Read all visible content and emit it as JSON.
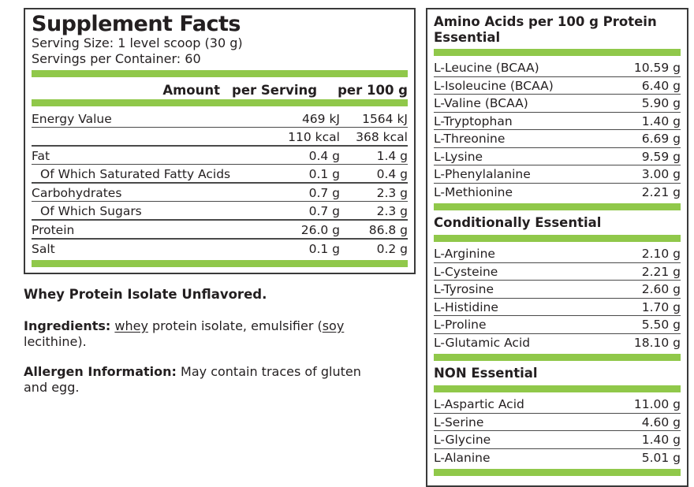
{
  "colors": {
    "accent_green": "#90C84A",
    "text": "#231F20",
    "border": "#3A3A3A"
  },
  "supplement_facts": {
    "title": "Supplement Facts",
    "serving_size": "Serving Size: 1 level scoop (30 g)",
    "servings_per_container": "Servings per Container: 60",
    "table": {
      "headers": {
        "amount": "Amount",
        "per_serving": "per Serving",
        "per_100g": "per 100 g"
      },
      "rows": [
        {
          "label": "Energy Value",
          "per_serving": "469 kJ",
          "per_100g": "1564 kJ",
          "sep": "thin"
        },
        {
          "label": "",
          "per_serving": "110 kcal",
          "per_100g": "368 kcal",
          "sep": "thick"
        },
        {
          "label": "Fat",
          "per_serving": "0.4 g",
          "per_100g": "1.4 g",
          "sep": "thin"
        },
        {
          "label": "Of Which Saturated Fatty Acids",
          "indent": true,
          "per_serving": "0.1 g",
          "per_100g": "0.4 g",
          "sep": "thick"
        },
        {
          "label": "Carbohydrates",
          "per_serving": "0.7 g",
          "per_100g": "2.3 g",
          "sep": "thin"
        },
        {
          "label": "Of Which Sugars",
          "indent": true,
          "per_serving": "0.7 g",
          "per_100g": "2.3 g",
          "sep": "thick"
        },
        {
          "label": "Protein",
          "per_serving": "26.0 g",
          "per_100g": "86.8 g",
          "sep": "thick"
        },
        {
          "label": "Salt",
          "per_serving": "0.1 g",
          "per_100g": "0.2 g",
          "sep": "none"
        }
      ]
    },
    "notes": {
      "product_name": "Whey Protein Isolate Unflavored.",
      "ingredients": {
        "label": "Ingredients:",
        "underlined_1": "whey",
        "text_1": " protein isolate, emulsifier (",
        "underlined_2": "soy",
        "text_2": " lecithine)."
      },
      "allergen": {
        "label": "Allergen Information:",
        "text": "May contain traces of gluten and egg."
      }
    }
  },
  "amino_acids": {
    "title": "Amino Acids per 100 g Protein",
    "sections": [
      {
        "title": "Essential",
        "rows": [
          {
            "name": "L-Leucine (BCAA)",
            "value": "10.59 g"
          },
          {
            "name": "L-Isoleucine (BCAA)",
            "value": "6.40 g"
          },
          {
            "name": "L-Valine (BCAA)",
            "value": "5.90 g"
          },
          {
            "name": "L-Tryptophan",
            "value": "1.40 g"
          },
          {
            "name": "L-Threonine",
            "value": "6.69 g"
          },
          {
            "name": "L-Lysine",
            "value": "9.59 g"
          },
          {
            "name": "L-Phenylalanine",
            "value": "3.00 g"
          },
          {
            "name": "L-Methionine",
            "value": "2.21 g"
          }
        ]
      },
      {
        "title": "Conditionally Essential",
        "rows": [
          {
            "name": "L-Arginine",
            "value": "2.10 g"
          },
          {
            "name": "L-Cysteine",
            "value": "2.21 g"
          },
          {
            "name": "L-Tyrosine",
            "value": "2.60 g"
          },
          {
            "name": "L-Histidine",
            "value": "1.70 g"
          },
          {
            "name": "L-Proline",
            "value": "5.50 g"
          },
          {
            "name": "L-Glutamic Acid",
            "value": "18.10 g"
          }
        ]
      },
      {
        "title": "NON Essential",
        "rows": [
          {
            "name": "L-Aspartic Acid",
            "value": "11.00 g"
          },
          {
            "name": "L-Serine",
            "value": "4.60 g"
          },
          {
            "name": "L-Glycine",
            "value": "1.40 g"
          },
          {
            "name": "L-Alanine",
            "value": "5.01 g"
          }
        ]
      }
    ]
  }
}
